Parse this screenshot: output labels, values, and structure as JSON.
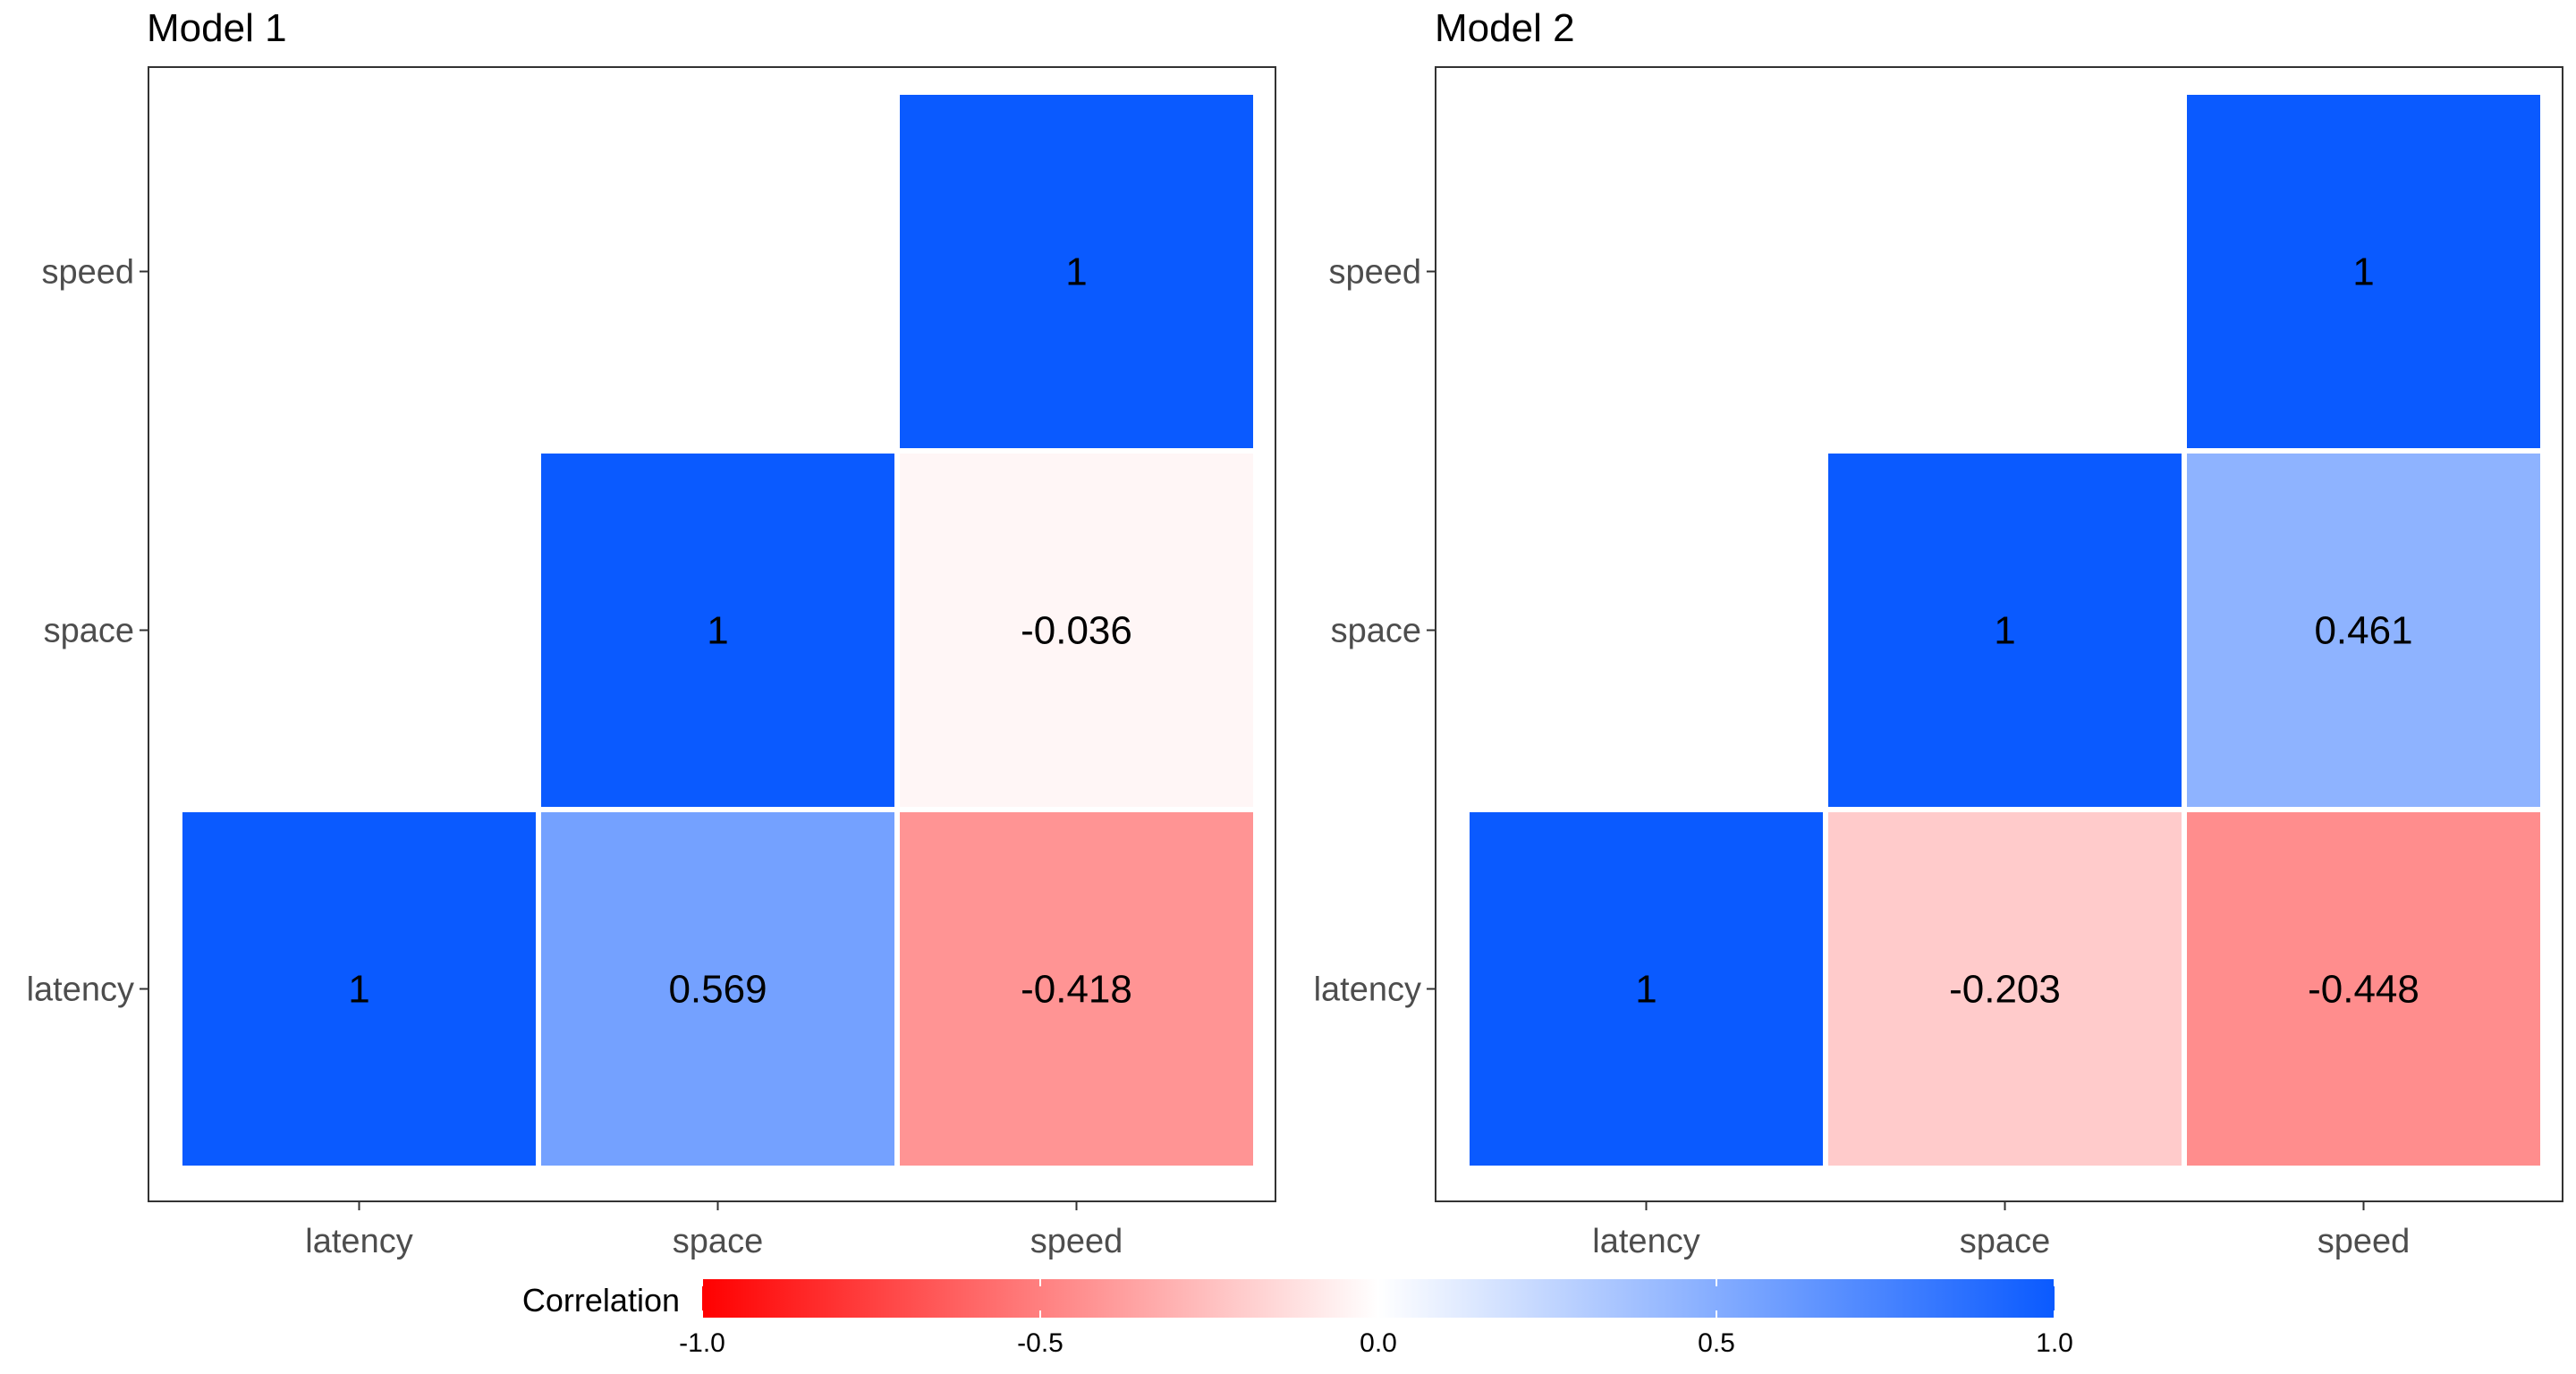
{
  "chart_data": [
    {
      "type": "heatmap",
      "title": "Model 1",
      "x_categories": [
        "latency",
        "space",
        "speed"
      ],
      "y_categories": [
        "latency",
        "space",
        "speed"
      ],
      "cells": [
        {
          "x": "latency",
          "y": "latency",
          "value": 1,
          "label": "1"
        },
        {
          "x": "space",
          "y": "latency",
          "value": 0.569,
          "label": "0.569"
        },
        {
          "x": "speed",
          "y": "latency",
          "value": -0.418,
          "label": "-0.418"
        },
        {
          "x": "space",
          "y": "space",
          "value": 1,
          "label": "1"
        },
        {
          "x": "speed",
          "y": "space",
          "value": -0.036,
          "label": "-0.036"
        },
        {
          "x": "speed",
          "y": "speed",
          "value": 1,
          "label": "1"
        }
      ]
    },
    {
      "type": "heatmap",
      "title": "Model 2",
      "x_categories": [
        "latency",
        "space",
        "speed"
      ],
      "y_categories": [
        "latency",
        "space",
        "speed"
      ],
      "cells": [
        {
          "x": "latency",
          "y": "latency",
          "value": 1,
          "label": "1"
        },
        {
          "x": "space",
          "y": "latency",
          "value": -0.203,
          "label": "-0.203"
        },
        {
          "x": "speed",
          "y": "latency",
          "value": -0.448,
          "label": "-0.448"
        },
        {
          "x": "space",
          "y": "space",
          "value": 1,
          "label": "1"
        },
        {
          "x": "speed",
          "y": "space",
          "value": 0.461,
          "label": "0.461"
        },
        {
          "x": "speed",
          "y": "speed",
          "value": 1,
          "label": "1"
        }
      ]
    }
  ],
  "legend": {
    "title": "Correlation",
    "range": [
      -1,
      1
    ],
    "ticks": [
      -1.0,
      -0.5,
      0.0,
      0.5,
      1.0
    ],
    "tick_labels": [
      "-1.0",
      "-0.5",
      "0.0",
      "0.5",
      "1.0"
    ],
    "colors": {
      "low": "#ff0000",
      "mid": "#ffffff",
      "high": "#0a5aff"
    },
    "placement": "bottom"
  }
}
